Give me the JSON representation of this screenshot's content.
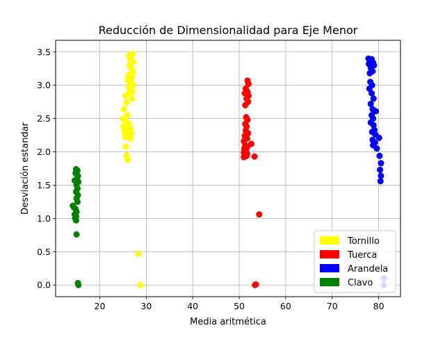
{
  "chart_data": {
    "type": "scatter",
    "title": "Reducción de Dimensionalidad para Eje Menor",
    "xlabel": "Media aritmética",
    "ylabel": "Desviación estandar",
    "xlim": [
      10.5,
      84.7
    ],
    "ylim": [
      -0.175,
      3.675
    ],
    "xticks": [
      20,
      30,
      40,
      50,
      60,
      70,
      80
    ],
    "yticks": [
      0.0,
      0.5,
      1.0,
      1.5,
      2.0,
      2.5,
      3.0,
      3.5
    ],
    "xtick_labels": [
      "20",
      "30",
      "40",
      "50",
      "60",
      "70",
      "80"
    ],
    "ytick_labels": [
      "0.0",
      "0.5",
      "1.0",
      "1.5",
      "2.0",
      "2.5",
      "3.0",
      "3.5"
    ],
    "grid": true,
    "legend_position": "lower-right",
    "series": [
      {
        "name": "Tornillo",
        "color": "#ffff00",
        "points": [
          [
            26.3,
            3.45
          ],
          [
            27.0,
            3.47
          ],
          [
            26.6,
            3.4
          ],
          [
            27.2,
            3.35
          ],
          [
            26.4,
            3.3
          ],
          [
            26.8,
            3.25
          ],
          [
            27.1,
            3.2
          ],
          [
            26.2,
            3.15
          ],
          [
            26.9,
            3.12
          ],
          [
            26.0,
            3.08
          ],
          [
            26.7,
            3.05
          ],
          [
            27.2,
            3.0
          ],
          [
            26.3,
            2.98
          ],
          [
            26.5,
            2.95
          ],
          [
            27.0,
            2.9
          ],
          [
            26.1,
            2.87
          ],
          [
            25.5,
            2.84
          ],
          [
            26.9,
            2.8
          ],
          [
            25.8,
            2.74
          ],
          [
            25.2,
            2.64
          ],
          [
            25.9,
            2.55
          ],
          [
            25.0,
            2.5
          ],
          [
            25.6,
            2.46
          ],
          [
            26.3,
            2.42
          ],
          [
            25.1,
            2.38
          ],
          [
            26.6,
            2.36
          ],
          [
            25.8,
            2.33
          ],
          [
            25.3,
            2.3
          ],
          [
            26.8,
            2.28
          ],
          [
            26.0,
            2.25
          ],
          [
            25.5,
            2.22
          ],
          [
            26.6,
            2.2
          ],
          [
            25.6,
            2.08
          ],
          [
            25.8,
            1.95
          ],
          [
            26.0,
            1.88
          ],
          [
            28.3,
            0.47
          ],
          [
            28.8,
            0.0
          ]
        ]
      },
      {
        "name": "Tuerca",
        "color": "#ff0000",
        "points": [
          [
            51.8,
            3.07
          ],
          [
            52.0,
            3.02
          ],
          [
            51.4,
            2.95
          ],
          [
            51.8,
            2.9
          ],
          [
            51.2,
            2.88
          ],
          [
            52.0,
            2.84
          ],
          [
            51.6,
            2.8
          ],
          [
            51.9,
            2.75
          ],
          [
            51.3,
            2.7
          ],
          [
            51.5,
            2.52
          ],
          [
            51.8,
            2.48
          ],
          [
            51.3,
            2.42
          ],
          [
            51.6,
            2.38
          ],
          [
            51.4,
            2.32
          ],
          [
            51.9,
            2.28
          ],
          [
            51.2,
            2.24
          ],
          [
            51.7,
            2.2
          ],
          [
            51.0,
            2.16
          ],
          [
            52.6,
            2.12
          ],
          [
            51.3,
            2.1
          ],
          [
            51.8,
            2.08
          ],
          [
            51.1,
            2.05
          ],
          [
            51.5,
            2.02
          ],
          [
            51.0,
            1.99
          ],
          [
            51.7,
            1.97
          ],
          [
            51.2,
            1.95
          ],
          [
            51.6,
            1.94
          ],
          [
            53.3,
            1.93
          ],
          [
            51.0,
            1.92
          ],
          [
            54.3,
            1.06
          ],
          [
            53.6,
            0.01
          ],
          [
            53.4,
            0.0
          ]
        ]
      },
      {
        "name": "Arandela",
        "color": "#0000ff",
        "points": [
          [
            77.8,
            3.4
          ],
          [
            78.5,
            3.39
          ],
          [
            78.8,
            3.34
          ],
          [
            77.9,
            3.32
          ],
          [
            79.0,
            3.3
          ],
          [
            78.3,
            3.26
          ],
          [
            78.7,
            3.21
          ],
          [
            78.1,
            3.18
          ],
          [
            78.2,
            3.05
          ],
          [
            78.6,
            3.0
          ],
          [
            78.0,
            2.95
          ],
          [
            78.5,
            2.88
          ],
          [
            78.9,
            2.8
          ],
          [
            78.3,
            2.72
          ],
          [
            78.7,
            2.64
          ],
          [
            79.4,
            2.61
          ],
          [
            78.5,
            2.55
          ],
          [
            78.8,
            2.5
          ],
          [
            78.3,
            2.44
          ],
          [
            78.9,
            2.4
          ],
          [
            79.1,
            2.33
          ],
          [
            78.6,
            2.3
          ],
          [
            79.3,
            2.26
          ],
          [
            80.1,
            2.21
          ],
          [
            78.7,
            2.18
          ],
          [
            79.2,
            2.14
          ],
          [
            78.8,
            2.1
          ],
          [
            79.6,
            2.05
          ],
          [
            80.2,
            1.94
          ],
          [
            80.5,
            1.83
          ],
          [
            80.3,
            1.73
          ],
          [
            80.5,
            1.64
          ],
          [
            80.4,
            1.56
          ],
          [
            81.1,
            0.1
          ],
          [
            81.1,
            0.0
          ]
        ]
      },
      {
        "name": "Clavo",
        "color": "#008000",
        "points": [
          [
            14.9,
            1.74
          ],
          [
            15.2,
            1.72
          ],
          [
            14.8,
            1.68
          ],
          [
            15.3,
            1.64
          ],
          [
            15.1,
            1.6
          ],
          [
            14.6,
            1.57
          ],
          [
            15.4,
            1.55
          ],
          [
            15.0,
            1.5
          ],
          [
            15.2,
            1.45
          ],
          [
            14.9,
            1.4
          ],
          [
            15.3,
            1.35
          ],
          [
            15.0,
            1.3
          ],
          [
            15.2,
            1.25
          ],
          [
            14.2,
            1.19
          ],
          [
            14.5,
            1.16
          ],
          [
            14.8,
            1.14
          ],
          [
            15.0,
            1.1
          ],
          [
            14.6,
            1.06
          ],
          [
            14.9,
            1.03
          ],
          [
            14.7,
            1.0
          ],
          [
            14.9,
            0.97
          ],
          [
            15.0,
            0.76
          ],
          [
            15.3,
            0.03
          ],
          [
            15.4,
            0.0
          ]
        ]
      }
    ]
  }
}
